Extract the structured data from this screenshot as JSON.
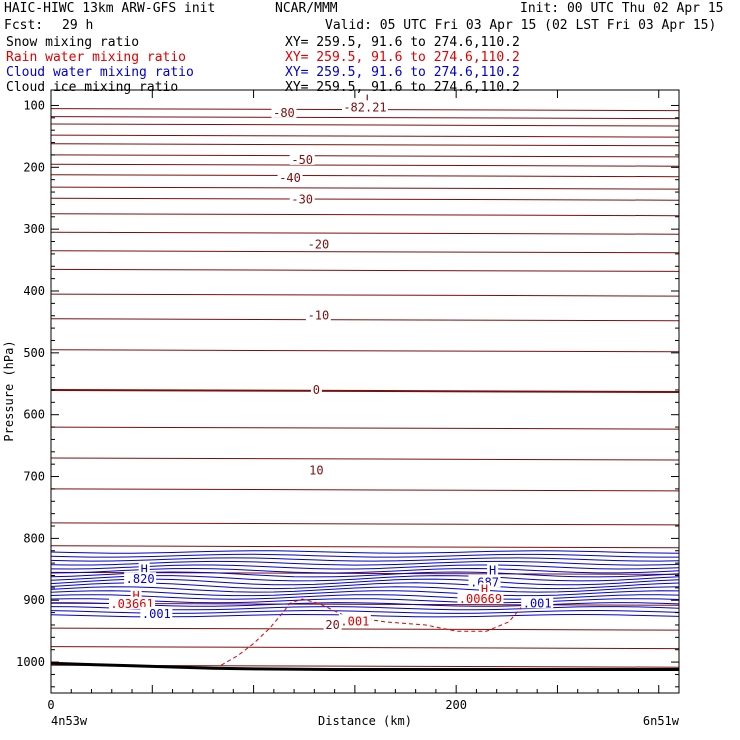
{
  "header": {
    "model": "HAIC-HIWC 13km ARW-GFS init",
    "center": "NCAR/MMM",
    "init": "Init: 00 UTC Thu 02 Apr 15",
    "fcst_label": "Fcst:",
    "fcst_value": "29 h",
    "valid": "Valid: 05 UTC Fri 03 Apr 15 (02 LST Fri 03 Apr 15)"
  },
  "fields": [
    {
      "name": "Snow mixing ratio",
      "xy": "XY= 259.5, 91.6 to 274.6,110.2",
      "color": "#000000"
    },
    {
      "name": "Rain water mixing ratio",
      "xy": "XY= 259.5, 91.6 to 274.6,110.2",
      "color": "#e00000"
    },
    {
      "name": "Cloud water mixing ratio",
      "xy": "XY= 259.5, 91.6 to 274.6,110.2",
      "color": "#0000d0"
    },
    {
      "name": "Cloud ice mixing ratio",
      "xy": "XY= 259.5, 91.6 to 274.6,110.2",
      "color": "#000000"
    }
  ],
  "chart_data": {
    "type": "line",
    "xlabel": "Distance (km)",
    "ylabel": "Pressure (hPa)",
    "xlim": [
      0,
      310
    ],
    "ylim": [
      1050,
      75
    ],
    "x_ticks": [
      0,
      200
    ],
    "x_end_labels": [
      "4n53w",
      "6n51w"
    ],
    "y_ticks": [
      100,
      200,
      300,
      400,
      500,
      600,
      700,
      800,
      900,
      1000
    ],
    "colors": {
      "temperature": "#7a0f0f",
      "rain": "#e00000",
      "cloud": "#0000d0",
      "ground": "#000000"
    },
    "isotherm_pressures": [
      105,
      118,
      130,
      148,
      162,
      180,
      195,
      212,
      232,
      250,
      275,
      305,
      335,
      365,
      405,
      445,
      495,
      560,
      620,
      670,
      720,
      775,
      812,
      855,
      905,
      945,
      975,
      1005
    ],
    "isotherm_labels": [
      {
        "text": "-80",
        "x": 115,
        "p": 112
      },
      {
        "text": "-50",
        "x": 124,
        "p": 188
      },
      {
        "text": "-40",
        "x": 118,
        "p": 217
      },
      {
        "text": "-30",
        "x": 124,
        "p": 252
      },
      {
        "text": "-20",
        "x": 132,
        "p": 325
      },
      {
        "text": "-10",
        "x": 132,
        "p": 440
      },
      {
        "text": "0",
        "x": 131,
        "p": 560
      },
      {
        "text": "10",
        "x": 131,
        "p": 690
      },
      {
        "text": "20",
        "x": 139,
        "p": 940
      }
    ],
    "extrema_labels": [
      {
        "text": "L",
        "x": 157,
        "p": 90,
        "series": "temperature"
      },
      {
        "text": "-82.21",
        "x": 155,
        "p": 103,
        "series": "temperature"
      },
      {
        "text": "H",
        "x": 46,
        "p": 850,
        "series": "cloud"
      },
      {
        "text": ".820",
        "x": 44,
        "p": 866,
        "series": "cloud"
      },
      {
        "text": "H",
        "x": 42,
        "p": 893,
        "series": "rain"
      },
      {
        "text": ".03661",
        "x": 40,
        "p": 906,
        "series": "rain"
      },
      {
        "text": ".001",
        "x": 52,
        "p": 922,
        "series": "cloud"
      },
      {
        "text": "H",
        "x": 218,
        "p": 852,
        "series": "cloud"
      },
      {
        "text": ".687",
        "x": 214,
        "p": 871,
        "series": "cloud"
      },
      {
        "text": "H",
        "x": 214,
        "p": 883,
        "series": "rain"
      },
      {
        "text": ".00669",
        "x": 212,
        "p": 898,
        "series": "rain"
      },
      {
        "text": ".001",
        "x": 240,
        "p": 905,
        "series": "cloud"
      },
      {
        "text": ".001",
        "x": 150,
        "p": 934,
        "series": "rain"
      }
    ],
    "rain_contour": {
      "x": [
        84,
        92,
        100,
        108,
        114,
        118,
        124,
        132,
        145,
        165,
        185,
        200,
        215,
        226,
        232,
        236
      ],
      "p": [
        1005,
        990,
        970,
        945,
        922,
        905,
        898,
        905,
        925,
        935,
        940,
        950,
        950,
        935,
        912,
        895
      ]
    },
    "cloud_layer": {
      "p_top": 822,
      "p_bottom": 925,
      "x_start": 0,
      "x_end": 310
    },
    "ground": {
      "x": [
        0,
        20,
        40,
        60,
        80,
        100,
        140,
        180,
        220,
        260,
        310
      ],
      "p": [
        1002,
        1004,
        1006,
        1008,
        1010,
        1011,
        1012,
        1012,
        1012,
        1012,
        1012
      ]
    }
  }
}
